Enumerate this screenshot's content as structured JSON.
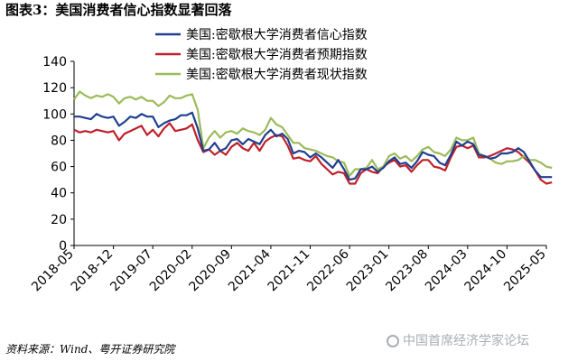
{
  "figure": {
    "title": "图表3：美国消费者信心指数显著回落",
    "source": "资料来源：Wind、粤开证券研究院",
    "watermark": "中国首席经济学家论坛"
  },
  "chart_data": {
    "type": "line",
    "title": "",
    "xlabel": "",
    "ylabel": "",
    "ylim": [
      0,
      140
    ],
    "yticks": [
      0,
      20,
      40,
      60,
      80,
      100,
      120,
      140
    ],
    "xlim": [
      "2018-05",
      "2025-05"
    ],
    "xticks": [
      "2018-05",
      "2018-12",
      "2019-07",
      "2020-02",
      "2020-09",
      "2021-04",
      "2021-11",
      "2022-06",
      "2023-01",
      "2023-08",
      "2024-03",
      "2024-10",
      "2025-05"
    ],
    "grid": false,
    "legend": "top-center",
    "colors": {
      "expectations": "#c0202a",
      "current": "#9bbb59",
      "sentiment": "#1f3f8f"
    },
    "series": [
      {
        "name": "美国:密歇根大学消费者预期指数",
        "key": "expectations",
        "points": [
          [
            "2018-05",
            88
          ],
          [
            "2018-06",
            86
          ],
          [
            "2018-07",
            87
          ],
          [
            "2018-08",
            86
          ],
          [
            "2018-09",
            88
          ],
          [
            "2018-10",
            87
          ],
          [
            "2018-11",
            86
          ],
          [
            "2018-12",
            87
          ],
          [
            "2019-01",
            80
          ],
          [
            "2019-02",
            85
          ],
          [
            "2019-03",
            87
          ],
          [
            "2019-04",
            89
          ],
          [
            "2019-05",
            91
          ],
          [
            "2019-06",
            84
          ],
          [
            "2019-07",
            88
          ],
          [
            "2019-08",
            83
          ],
          [
            "2019-09",
            89
          ],
          [
            "2019-10",
            93
          ],
          [
            "2019-11",
            87
          ],
          [
            "2019-12",
            88
          ],
          [
            "2020-01",
            89
          ],
          [
            "2020-02",
            92
          ],
          [
            "2020-03",
            80
          ],
          [
            "2020-04",
            71
          ],
          [
            "2020-05",
            73
          ],
          [
            "2020-06",
            69
          ],
          [
            "2020-07",
            72
          ],
          [
            "2020-08",
            69
          ],
          [
            "2020-09",
            75
          ],
          [
            "2020-10",
            78
          ],
          [
            "2020-11",
            74
          ],
          [
            "2020-12",
            72
          ],
          [
            "2021-01",
            78
          ],
          [
            "2021-02",
            72
          ],
          [
            "2021-03",
            79
          ],
          [
            "2021-04",
            82
          ],
          [
            "2021-05",
            84
          ],
          [
            "2021-06",
            83
          ],
          [
            "2021-07",
            76
          ],
          [
            "2021-08",
            66
          ],
          [
            "2021-09",
            67
          ],
          [
            "2021-10",
            65
          ],
          [
            "2021-11",
            64
          ],
          [
            "2021-12",
            68
          ],
          [
            "2022-01",
            62
          ],
          [
            "2022-02",
            58
          ],
          [
            "2022-03",
            54
          ],
          [
            "2022-04",
            56
          ],
          [
            "2022-05",
            55
          ],
          [
            "2022-06",
            47
          ],
          [
            "2022-07",
            47
          ],
          [
            "2022-08",
            55
          ],
          [
            "2022-09",
            58
          ],
          [
            "2022-10",
            56
          ],
          [
            "2022-11",
            55
          ],
          [
            "2022-12",
            60
          ],
          [
            "2023-01",
            63
          ],
          [
            "2023-02",
            65
          ],
          [
            "2023-03",
            60
          ],
          [
            "2023-04",
            61
          ],
          [
            "2023-05",
            56
          ],
          [
            "2023-06",
            61
          ],
          [
            "2023-07",
            65
          ],
          [
            "2023-08",
            65
          ],
          [
            "2023-09",
            60
          ],
          [
            "2023-10",
            59
          ],
          [
            "2023-11",
            57
          ],
          [
            "2023-12",
            67
          ],
          [
            "2024-01",
            75
          ],
          [
            "2024-02",
            76
          ],
          [
            "2024-03",
            74
          ],
          [
            "2024-04",
            76
          ],
          [
            "2024-05",
            67
          ],
          [
            "2024-06",
            67
          ],
          [
            "2024-07",
            68
          ],
          [
            "2024-08",
            70
          ],
          [
            "2024-09",
            72
          ],
          [
            "2024-10",
            74
          ],
          [
            "2024-11",
            73
          ],
          [
            "2024-12",
            71
          ],
          [
            "2025-01",
            67
          ],
          [
            "2025-02",
            63
          ],
          [
            "2025-03",
            57
          ],
          [
            "2025-04",
            50
          ],
          [
            "2025-05",
            47
          ],
          [
            "2025-06",
            48
          ]
        ]
      },
      {
        "name": "美国:密歇根大学消费者现状指数",
        "key": "current",
        "points": [
          [
            "2018-05",
            111
          ],
          [
            "2018-06",
            117
          ],
          [
            "2018-07",
            114
          ],
          [
            "2018-08",
            112
          ],
          [
            "2018-09",
            114
          ],
          [
            "2018-10",
            113
          ],
          [
            "2018-11",
            115
          ],
          [
            "2018-12",
            113
          ],
          [
            "2019-01",
            108
          ],
          [
            "2019-02",
            112
          ],
          [
            "2019-03",
            113
          ],
          [
            "2019-04",
            111
          ],
          [
            "2019-05",
            113
          ],
          [
            "2019-06",
            110
          ],
          [
            "2019-07",
            110
          ],
          [
            "2019-08",
            106
          ],
          [
            "2019-09",
            109
          ],
          [
            "2019-10",
            114
          ],
          [
            "2019-11",
            112
          ],
          [
            "2019-12",
            112
          ],
          [
            "2020-01",
            114
          ],
          [
            "2020-02",
            115
          ],
          [
            "2020-03",
            103
          ],
          [
            "2020-04",
            74
          ],
          [
            "2020-05",
            82
          ],
          [
            "2020-06",
            87
          ],
          [
            "2020-07",
            82
          ],
          [
            "2020-08",
            86
          ],
          [
            "2020-09",
            87
          ],
          [
            "2020-10",
            85
          ],
          [
            "2020-11",
            89
          ],
          [
            "2020-12",
            87
          ],
          [
            "2021-01",
            86
          ],
          [
            "2021-02",
            84
          ],
          [
            "2021-03",
            88
          ],
          [
            "2021-04",
            97
          ],
          [
            "2021-05",
            92
          ],
          [
            "2021-06",
            90
          ],
          [
            "2021-07",
            84
          ],
          [
            "2021-08",
            78
          ],
          [
            "2021-09",
            78
          ],
          [
            "2021-10",
            74
          ],
          [
            "2021-11",
            73
          ],
          [
            "2021-12",
            72
          ],
          [
            "2022-01",
            70
          ],
          [
            "2022-02",
            68
          ],
          [
            "2022-03",
            67
          ],
          [
            "2022-04",
            64
          ],
          [
            "2022-05",
            63
          ],
          [
            "2022-06",
            53
          ],
          [
            "2022-07",
            58
          ],
          [
            "2022-08",
            58
          ],
          [
            "2022-09",
            59
          ],
          [
            "2022-10",
            65
          ],
          [
            "2022-11",
            58
          ],
          [
            "2022-12",
            60
          ],
          [
            "2023-01",
            68
          ],
          [
            "2023-02",
            70
          ],
          [
            "2023-03",
            66
          ],
          [
            "2023-04",
            68
          ],
          [
            "2023-05",
            64
          ],
          [
            "2023-06",
            68
          ],
          [
            "2023-07",
            73
          ],
          [
            "2023-08",
            75
          ],
          [
            "2023-09",
            71
          ],
          [
            "2023-10",
            70
          ],
          [
            "2023-11",
            68
          ],
          [
            "2023-12",
            73
          ],
          [
            "2024-01",
            82
          ],
          [
            "2024-02",
            80
          ],
          [
            "2024-03",
            80
          ],
          [
            "2024-04",
            82
          ],
          [
            "2024-05",
            70
          ],
          [
            "2024-06",
            68
          ],
          [
            "2024-07",
            66
          ],
          [
            "2024-08",
            63
          ],
          [
            "2024-09",
            62
          ],
          [
            "2024-10",
            64
          ],
          [
            "2024-11",
            64
          ],
          [
            "2024-12",
            65
          ],
          [
            "2025-01",
            68
          ],
          [
            "2025-02",
            65
          ],
          [
            "2025-03",
            65
          ],
          [
            "2025-04",
            63
          ],
          [
            "2025-05",
            60
          ],
          [
            "2025-06",
            59
          ]
        ]
      },
      {
        "name": "美国:密歇根大学消费者信心指数",
        "key": "sentiment",
        "points": [
          [
            "2018-05",
            98
          ],
          [
            "2018-06",
            98
          ],
          [
            "2018-07",
            97
          ],
          [
            "2018-08",
            96
          ],
          [
            "2018-09",
            100
          ],
          [
            "2018-10",
            98
          ],
          [
            "2018-11",
            97
          ],
          [
            "2018-12",
            98
          ],
          [
            "2019-01",
            91
          ],
          [
            "2019-02",
            94
          ],
          [
            "2019-03",
            98
          ],
          [
            "2019-04",
            97
          ],
          [
            "2019-05",
            100
          ],
          [
            "2019-06",
            98
          ],
          [
            "2019-07",
            98
          ],
          [
            "2019-08",
            90
          ],
          [
            "2019-09",
            93
          ],
          [
            "2019-10",
            95
          ],
          [
            "2019-11",
            96
          ],
          [
            "2019-12",
            99
          ],
          [
            "2020-01",
            99
          ],
          [
            "2020-02",
            101
          ],
          [
            "2020-03",
            89
          ],
          [
            "2020-04",
            72
          ],
          [
            "2020-05",
            73
          ],
          [
            "2020-06",
            78
          ],
          [
            "2020-07",
            72
          ],
          [
            "2020-08",
            74
          ],
          [
            "2020-09",
            80
          ],
          [
            "2020-10",
            81
          ],
          [
            "2020-11",
            77
          ],
          [
            "2020-12",
            81
          ],
          [
            "2021-01",
            79
          ],
          [
            "2021-02",
            77
          ],
          [
            "2021-03",
            84
          ],
          [
            "2021-04",
            88
          ],
          [
            "2021-05",
            83
          ],
          [
            "2021-06",
            85
          ],
          [
            "2021-07",
            81
          ],
          [
            "2021-08",
            70
          ],
          [
            "2021-09",
            72
          ],
          [
            "2021-10",
            71
          ],
          [
            "2021-11",
            67
          ],
          [
            "2021-12",
            70
          ],
          [
            "2022-01",
            67
          ],
          [
            "2022-02",
            63
          ],
          [
            "2022-03",
            59
          ],
          [
            "2022-04",
            65
          ],
          [
            "2022-05",
            58
          ],
          [
            "2022-06",
            50
          ],
          [
            "2022-07",
            51
          ],
          [
            "2022-08",
            58
          ],
          [
            "2022-09",
            58
          ],
          [
            "2022-10",
            60
          ],
          [
            "2022-11",
            56
          ],
          [
            "2022-12",
            59
          ],
          [
            "2023-01",
            64
          ],
          [
            "2023-02",
            67
          ],
          [
            "2023-03",
            62
          ],
          [
            "2023-04",
            63
          ],
          [
            "2023-05",
            59
          ],
          [
            "2023-06",
            64
          ],
          [
            "2023-07",
            71
          ],
          [
            "2023-08",
            69
          ],
          [
            "2023-09",
            68
          ],
          [
            "2023-10",
            63
          ],
          [
            "2023-11",
            61
          ],
          [
            "2023-12",
            69
          ],
          [
            "2024-01",
            79
          ],
          [
            "2024-02",
            76
          ],
          [
            "2024-03",
            79
          ],
          [
            "2024-04",
            77
          ],
          [
            "2024-05",
            69
          ],
          [
            "2024-06",
            68
          ],
          [
            "2024-07",
            66
          ],
          [
            "2024-08",
            67
          ],
          [
            "2024-09",
            70
          ],
          [
            "2024-10",
            70
          ],
          [
            "2024-11",
            71
          ],
          [
            "2024-12",
            74
          ],
          [
            "2025-01",
            71
          ],
          [
            "2025-02",
            64
          ],
          [
            "2025-03",
            57
          ],
          [
            "2025-04",
            52
          ],
          [
            "2025-05",
            52
          ],
          [
            "2025-06",
            52
          ]
        ]
      }
    ],
    "legend_order": [
      "sentiment",
      "expectations",
      "current"
    ]
  }
}
